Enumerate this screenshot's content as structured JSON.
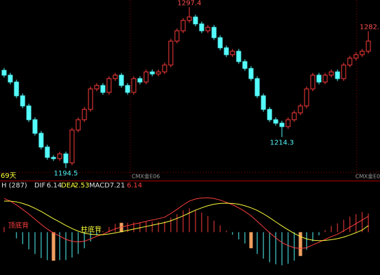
{
  "chart_data": [
    {
      "type": "candlestick",
      "open": [
        1257.0,
        1253.9,
        1249.5,
        1240.7,
        1234.2,
        1225.4,
        1216.7,
        1207.9,
        1201.3,
        1200.5,
        1203.5,
        1197.8,
        1218.8,
        1225.4,
        1232.0,
        1245.1,
        1247.3,
        1242.9,
        1251.7,
        1253.9,
        1247.3,
        1242.9,
        1251.7,
        1249.5,
        1256.0,
        1254.7,
        1256.0,
        1260.4,
        1275.7,
        1282.3,
        1288.9,
        1291.1,
        1286.7,
        1282.3,
        1284.5,
        1277.9,
        1271.4,
        1267.0,
        1269.2,
        1262.6,
        1258.2,
        1251.7,
        1240.7,
        1232.0,
        1225.4,
        1223.2,
        1221.0,
        1225.4,
        1229.8,
        1234.2,
        1245.1,
        1253.9,
        1249.5,
        1253.9,
        1256.0,
        1251.7,
        1260.4,
        1264.8,
        1267.0,
        1269.2
      ],
      "high": [
        1258.5,
        1255.4,
        1251.0,
        1242.2,
        1235.7,
        1226.9,
        1218.2,
        1209.4,
        1202.8,
        1205.0,
        1205.0,
        1220.3,
        1226.9,
        1233.5,
        1246.6,
        1248.8,
        1248.8,
        1253.2,
        1255.4,
        1255.4,
        1248.8,
        1253.2,
        1253.2,
        1257.5,
        1257.5,
        1257.5,
        1261.9,
        1277.2,
        1283.8,
        1290.4,
        1297.4,
        1292.6,
        1288.2,
        1286.0,
        1286.0,
        1279.4,
        1272.9,
        1270.7,
        1270.7,
        1264.1,
        1259.7,
        1253.2,
        1242.2,
        1233.5,
        1226.9,
        1224.7,
        1226.9,
        1231.3,
        1235.7,
        1246.6,
        1255.4,
        1255.4,
        1255.4,
        1257.5,
        1257.5,
        1261.9,
        1266.3,
        1268.5,
        1270.7,
        1282
      ],
      "low": [
        1252.4,
        1248.0,
        1239.2,
        1232.7,
        1223.9,
        1215.2,
        1206.4,
        1199.8,
        1199.0,
        1199.0,
        1194.5,
        1196.3,
        1217.3,
        1223.9,
        1230.5,
        1243.6,
        1241.4,
        1241.4,
        1250.2,
        1245.8,
        1241.4,
        1241.4,
        1248.0,
        1248.0,
        1253.2,
        1253.2,
        1254.5,
        1258.9,
        1274.2,
        1280.8,
        1287.4,
        1285.2,
        1280.8,
        1280.8,
        1276.4,
        1269.9,
        1265.5,
        1265.5,
        1261.1,
        1256.7,
        1250.2,
        1239.2,
        1230.5,
        1223.9,
        1221.7,
        1214.3,
        1219.5,
        1223.9,
        1228.3,
        1232.7,
        1243.6,
        1248.0,
        1248.0,
        1252.4,
        1250.2,
        1250.2,
        1258.9,
        1263.3,
        1265.5,
        1267.7
      ],
      "close": [
        1253.9,
        1249.5,
        1240.7,
        1234.2,
        1225.4,
        1216.7,
        1207.9,
        1201.3,
        1200.5,
        1203.5,
        1197.8,
        1218.8,
        1225.4,
        1232.0,
        1245.1,
        1247.3,
        1242.9,
        1251.7,
        1253.9,
        1247.3,
        1242.9,
        1251.7,
        1249.5,
        1256.0,
        1254.7,
        1256.0,
        1260.4,
        1275.7,
        1282.3,
        1288.9,
        1291.1,
        1286.7,
        1282.3,
        1284.5,
        1277.9,
        1271.4,
        1267.0,
        1269.2,
        1262.6,
        1258.2,
        1251.7,
        1240.7,
        1232.0,
        1225.4,
        1223.2,
        1221.0,
        1225.4,
        1229.8,
        1234.2,
        1245.1,
        1253.9,
        1249.5,
        1253.9,
        1256.0,
        1251.7,
        1260.4,
        1264.8,
        1267.0,
        1269.2,
        1275.7
      ],
      "ylim": [
        1186,
        1302
      ],
      "up_color": "#ff3c3c",
      "down_color": "#54fcfc",
      "annotations": [
        {
          "value": 1297.4,
          "label": "1297.4",
          "color": "#ff5050"
        },
        {
          "value": 1194.5,
          "label": "1194.5",
          "color": "#54fcfc"
        },
        {
          "value": 1214.3,
          "label": "1214.3",
          "color": "#54fcfc"
        },
        {
          "value": 1282,
          "label": "1282.",
          "color": "#ff5050"
        }
      ],
      "period": "69天",
      "contract_labels": [
        "CMX金E06",
        "CMX金E06"
      ]
    },
    {
      "type": "macd",
      "title": "H (287)",
      "series": [
        {
          "name": "DIF",
          "color": "#ff4040",
          "values": [
            13.0,
            12.0,
            10.5,
            8.8,
            7.0,
            5.0,
            3.0,
            1.2,
            -0.3,
            -1.5,
            -2.8,
            -3.5,
            -3.8,
            -3.5,
            -2.6,
            -1.6,
            -0.8,
            0.3,
            1.3,
            2.0,
            2.5,
            3.1,
            3.6,
            4.2,
            4.7,
            5.2,
            5.8,
            7.2,
            8.8,
            10.5,
            12.0,
            12.8,
            13.2,
            13.3,
            13.0,
            12.4,
            11.5,
            10.6,
            9.4,
            8.0,
            6.3,
            4.2,
            2.0,
            -0.2,
            -2.2,
            -4.0,
            -5.2,
            -6.0,
            -6.3,
            -6.0,
            -4.9,
            -3.9,
            -2.8,
            -1.7,
            -0.8,
            0.5,
            1.9,
            3.3,
            4.7,
            6.14
          ]
        },
        {
          "name": "DEA",
          "color": "#ffff3c",
          "values": [
            12.0,
            12.0,
            11.7,
            11.1,
            10.3,
            9.2,
            8.0,
            6.6,
            5.2,
            3.9,
            2.6,
            1.4,
            0.4,
            -0.4,
            -0.8,
            -1.0,
            -1.0,
            -0.7,
            -0.3,
            0.2,
            0.7,
            1.2,
            1.7,
            2.2,
            2.7,
            3.2,
            3.7,
            4.4,
            5.3,
            6.3,
            7.4,
            8.5,
            9.4,
            10.2,
            10.8,
            11.1,
            11.2,
            11.1,
            10.8,
            10.2,
            9.4,
            8.4,
            7.1,
            5.6,
            4.0,
            2.4,
            0.9,
            -0.5,
            -1.7,
            -2.6,
            -3.1,
            -3.3,
            -3.2,
            -2.9,
            -2.5,
            -1.9,
            -1.1,
            -0.2,
            0.8,
            2.53
          ]
        },
        {
          "name": "MACD",
          "color": "#ff3c3c",
          "negative_color": "#54fcfc",
          "values": [
            2.0,
            0.0,
            -2.4,
            -4.6,
            -6.6,
            -8.4,
            -10.0,
            -10.8,
            -11.0,
            -10.8,
            -10.8,
            -9.8,
            -8.4,
            -6.2,
            -3.6,
            -1.2,
            0.4,
            2.0,
            3.2,
            3.6,
            3.6,
            3.8,
            3.8,
            4.0,
            4.0,
            4.0,
            4.2,
            5.6,
            7.0,
            8.4,
            9.2,
            8.6,
            7.6,
            6.2,
            4.4,
            2.6,
            0.6,
            -1.0,
            -2.8,
            -4.4,
            -6.2,
            -8.4,
            -10.2,
            -11.6,
            -12.4,
            -12.8,
            -12.2,
            -11.0,
            -9.2,
            -6.8,
            -3.6,
            -1.2,
            0.8,
            2.4,
            3.4,
            4.8,
            6.0,
            7.0,
            7.8,
            7.21
          ]
        }
      ],
      "highlight_color": "#f0a060",
      "highlighted": [
        8,
        19,
        40,
        48
      ],
      "ylim": [
        -16,
        17
      ],
      "divergence_labels": [
        {
          "text": "顶底背",
          "color": "#ff4040"
        },
        {
          "text": "柱底背",
          "color": "#ffff3c"
        }
      ]
    }
  ]
}
